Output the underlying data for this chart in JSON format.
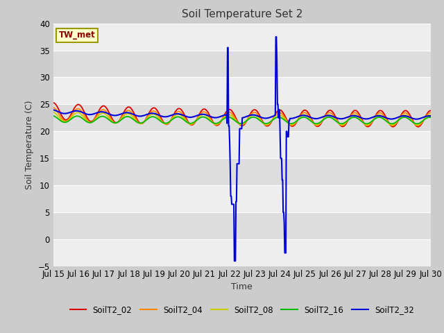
{
  "title": "Soil Temperature Set 2",
  "xlabel": "Time",
  "ylabel": "Soil Temperature (C)",
  "ylim": [
    -5,
    40
  ],
  "yticks": [
    -5,
    0,
    5,
    10,
    15,
    20,
    25,
    30,
    35,
    40
  ],
  "x_labels": [
    "Jul 15",
    "Jul 16",
    "Jul 17",
    "Jul 18",
    "Jul 19",
    "Jul 20",
    "Jul 21",
    "Jul 22",
    "Jul 23",
    "Jul 24",
    "Jul 25",
    "Jul 26",
    "Jul 27",
    "Jul 28",
    "Jul 29",
    "Jul 30"
  ],
  "annotation_text": "TW_met",
  "annotation_fg": "#8B0000",
  "annotation_bg": "#FFFFCC",
  "annotation_edge": "#999900",
  "series_colors": [
    "#DD0000",
    "#FF8800",
    "#CCCC00",
    "#00BB00",
    "#0000DD"
  ],
  "series_names": [
    "SoilT2_02",
    "SoilT2_04",
    "SoilT2_08",
    "SoilT2_16",
    "SoilT2_32"
  ],
  "fig_bg": "#CCCCCC",
  "plot_bg": "#E0E0E0",
  "band_light": "#EEEEEE",
  "band_dark": "#DDDDDD",
  "n_points": 720
}
